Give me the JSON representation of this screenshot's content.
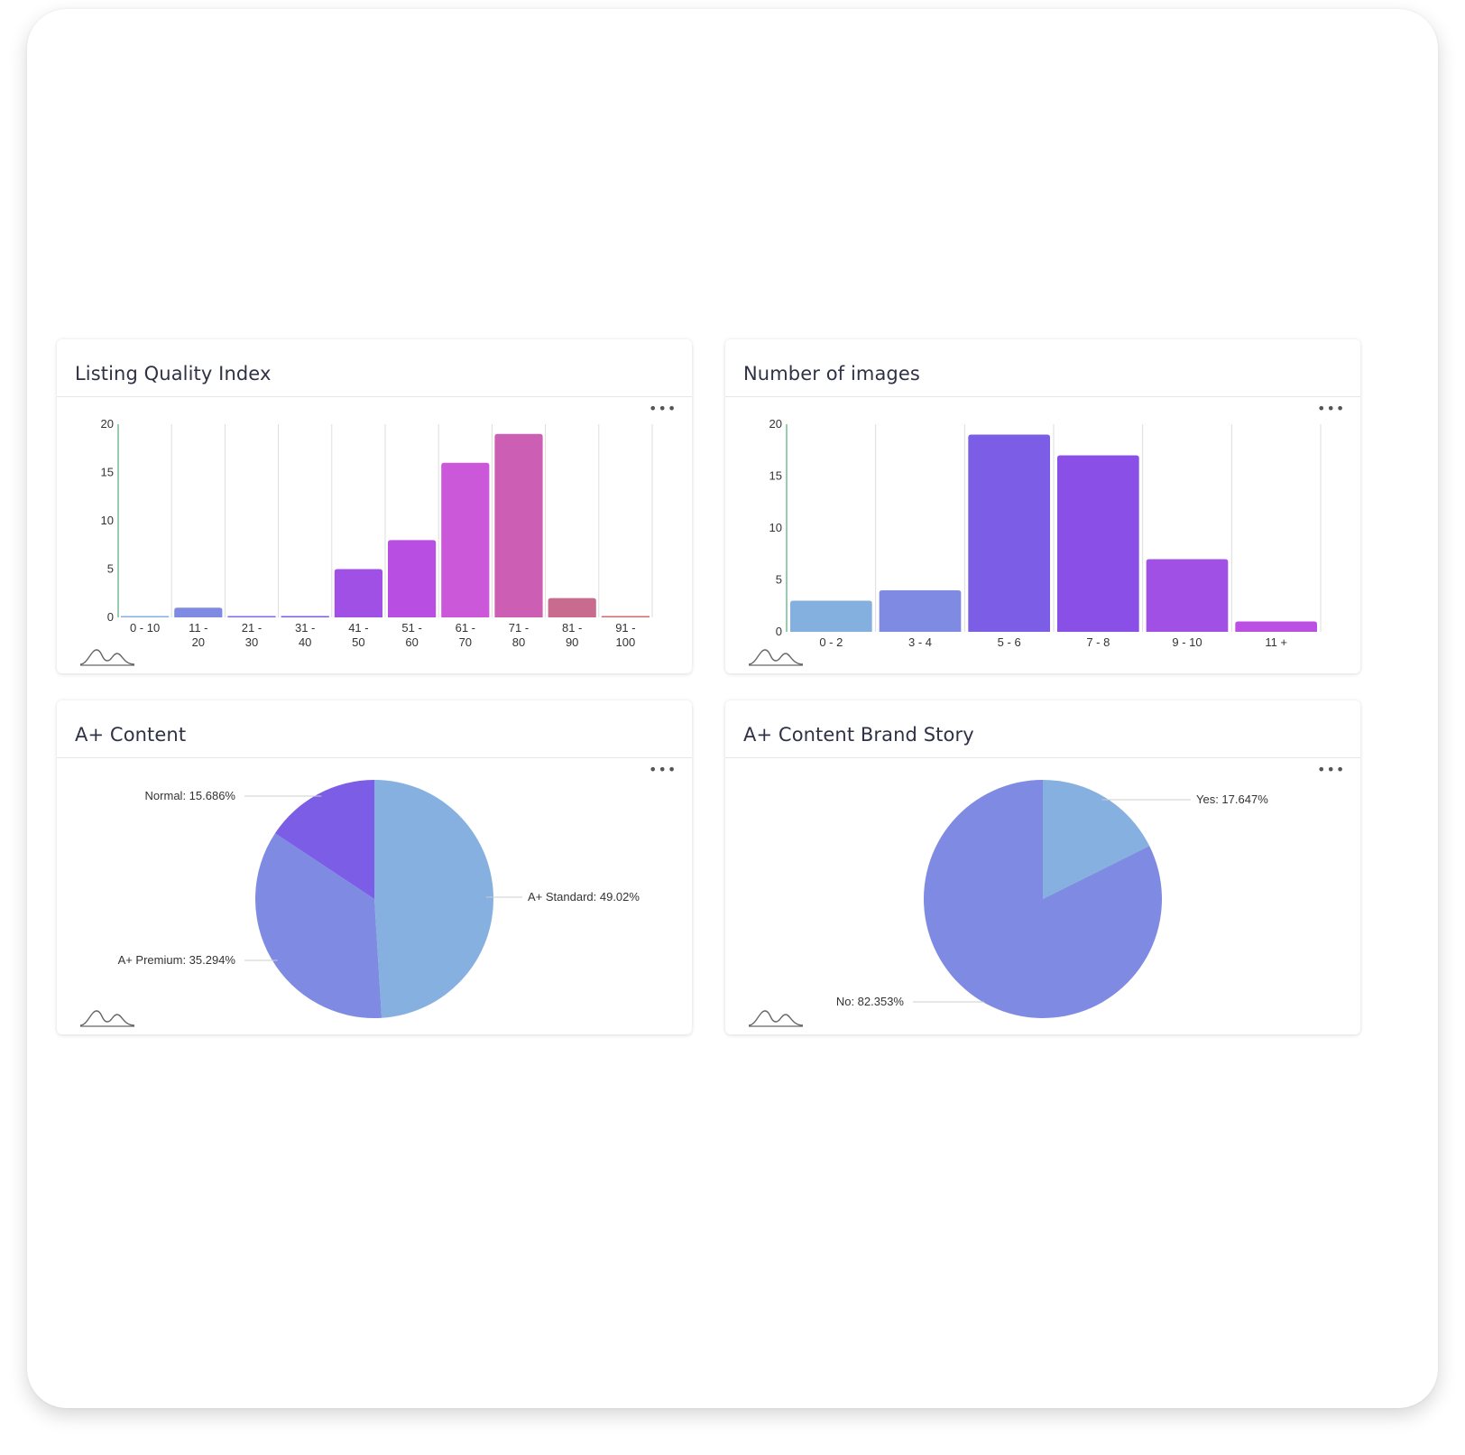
{
  "cards": [
    {
      "title": "Listing Quality Index",
      "menu_icon": "more-icon",
      "logo_icon": "chart-logo-icon"
    },
    {
      "title": "Number of images",
      "menu_icon": "more-icon",
      "logo_icon": "chart-logo-icon"
    },
    {
      "title": "A+ Content",
      "menu_icon": "more-icon",
      "logo_icon": "chart-logo-icon"
    },
    {
      "title": "A+ Content Brand Story",
      "menu_icon": "more-icon",
      "logo_icon": "chart-logo-icon"
    }
  ],
  "menu_label": "•••",
  "chart_data": [
    {
      "type": "bar",
      "title": "Listing Quality Index",
      "categories": [
        [
          "0 - 10"
        ],
        [
          "11 -",
          "20"
        ],
        [
          "21 -",
          "30"
        ],
        [
          "31 -",
          "40"
        ],
        [
          "41 -",
          "50"
        ],
        [
          "51 -",
          "60"
        ],
        [
          "61 -",
          "70"
        ],
        [
          "71 -",
          "80"
        ],
        [
          "81 -",
          "90"
        ],
        [
          "91 -",
          "100"
        ]
      ],
      "values": [
        0,
        1,
        0,
        0,
        5,
        8,
        16,
        19,
        2,
        0
      ],
      "colors": [
        "#84b0e0",
        "#7f8be2",
        "#7b6ee6",
        "#7e5de6",
        "#a150e5",
        "#b94ee3",
        "#cb58d8",
        "#cc5fb3",
        "#c96b8e",
        "#d06b6b"
      ],
      "ylim": [
        0,
        20
      ],
      "yticks": [
        0,
        5,
        10,
        15,
        20
      ],
      "grid": true
    },
    {
      "type": "bar",
      "title": "Number of images",
      "categories": [
        [
          "0  - 2"
        ],
        [
          "3  - 4"
        ],
        [
          "5  - 6"
        ],
        [
          "7  - 8"
        ],
        [
          "9  - 10"
        ],
        [
          "11 +"
        ]
      ],
      "values": [
        3,
        4,
        19,
        17,
        7,
        1
      ],
      "colors": [
        "#84b0e0",
        "#7f8be2",
        "#7b5de6",
        "#8a4fe6",
        "#a150e5",
        "#bc4fe3"
      ],
      "ylim": [
        0,
        20
      ],
      "yticks": [
        0,
        5,
        10,
        15,
        20
      ],
      "grid": true
    },
    {
      "type": "pie",
      "title": "A+ Content",
      "slices": [
        {
          "label": "A+ Standard",
          "value": 49.02,
          "text": "A+ Standard: 49.02%",
          "color": "#85b0e0"
        },
        {
          "label": "A+ Premium",
          "value": 35.294,
          "text": "A+ Premium: 35.294%",
          "color": "#7f8be2"
        },
        {
          "label": "Normal",
          "value": 15.686,
          "text": "Normal: 15.686%",
          "color": "#7b5de6"
        }
      ]
    },
    {
      "type": "pie",
      "title": "A+ Content Brand Story",
      "slices": [
        {
          "label": "Yes",
          "value": 17.647,
          "text": "Yes: 17.647%",
          "color": "#85b0e0"
        },
        {
          "label": "No",
          "value": 82.353,
          "text": "No: 82.353%",
          "color": "#7f8be2"
        }
      ]
    }
  ]
}
